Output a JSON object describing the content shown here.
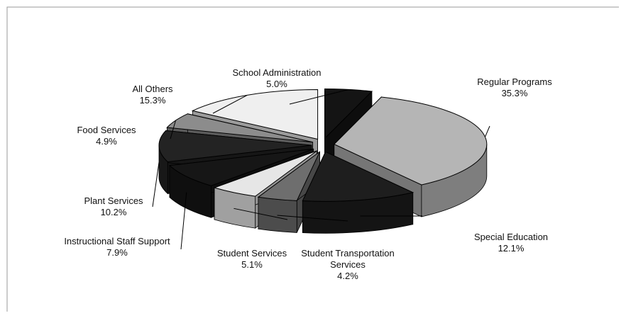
{
  "chart_data": {
    "type": "pie",
    "categories": [
      "Regular Programs",
      "Special Education",
      "Student Transportation Services",
      "Student Services",
      "Instructional Staff Support",
      "Plant Services",
      "Food Services",
      "All Others",
      "School Administration"
    ],
    "values": [
      35.3,
      12.1,
      4.2,
      5.1,
      7.9,
      10.2,
      4.9,
      15.3,
      5.0
    ],
    "value_labels": [
      "35.3%",
      "12.1%",
      "4.2%",
      "5.1%",
      "7.9%",
      "10.2%",
      "4.9%",
      "15.3%",
      "5.0%"
    ],
    "colors": [
      "#b5b5b5",
      "#1e1e1e",
      "#6e6e6e",
      "#e6e6e6",
      "#161616",
      "#232323",
      "#8c8c8c",
      "#efefef",
      "#141414"
    ]
  }
}
